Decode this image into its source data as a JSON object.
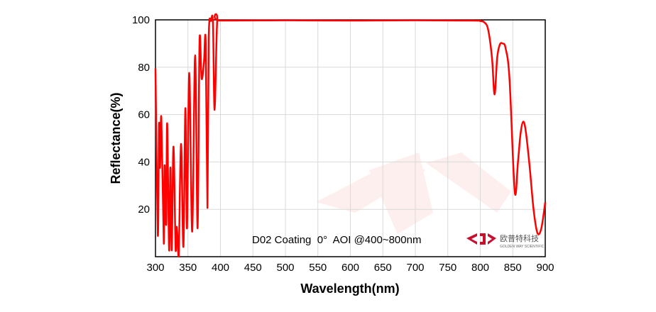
{
  "chart_data": {
    "type": "line",
    "title": "",
    "xlabel": "Wavelength(nm)",
    "ylabel": "Reflectance(%)",
    "xlim": [
      300,
      900
    ],
    "ylim": [
      0,
      100
    ],
    "xticks": [
      300,
      350,
      400,
      450,
      500,
      550,
      600,
      650,
      700,
      750,
      800,
      850,
      900
    ],
    "yticks": [
      20,
      40,
      60,
      80,
      100
    ],
    "grid": true,
    "annotation": "D02 Coating  0°  AOI @400~800nm",
    "series": [
      {
        "color": "#ff0000",
        "x": [
          300,
          303.6,
          305.5,
          307,
          309,
          312.8,
          314,
          316.4,
          318,
          321,
          323,
          325,
          327.7,
          331,
          332.8,
          335.7,
          339.3,
          343,
          346,
          348.5,
          352,
          356.5,
          361,
          364.8,
          367.8,
          371,
          374.6,
          377.3,
          380,
          382,
          385.6,
          388.5,
          391,
          395,
          400,
          500,
          600,
          700,
          790,
          800,
          806,
          812,
          818,
          822,
          826,
          830,
          834.5,
          839,
          845,
          853,
          858,
          862,
          866,
          870,
          876,
          882,
          888,
          894,
          900
        ],
        "y": [
          79.5,
          9,
          56,
          37.5,
          58.7,
          5.7,
          38.6,
          13.6,
          56.3,
          2.7,
          37.7,
          2.7,
          46.5,
          2.7,
          12.6,
          0,
          47.6,
          4.2,
          62.7,
          12,
          77.6,
          10.6,
          85,
          12,
          90.9,
          75.2,
          82,
          90.4,
          20.6,
          92.5,
          99.6,
          98.4,
          62,
          99.6,
          99.7,
          99.8,
          99.7,
          99.8,
          99.7,
          99.5,
          99,
          96,
          84,
          68.5,
          84,
          89.5,
          90,
          88,
          75,
          27.5,
          40,
          52,
          57,
          53,
          38,
          20,
          10,
          12,
          23
        ]
      }
    ]
  },
  "logo": {
    "name": "欧普特科技",
    "subtitle": "GOLDEN WAY SCIENTIFIC"
  },
  "colors": {
    "line": "#ff0000",
    "grid": "#d9d9d9",
    "watermark": "#fbe9e7",
    "logo": "#c8102e"
  }
}
